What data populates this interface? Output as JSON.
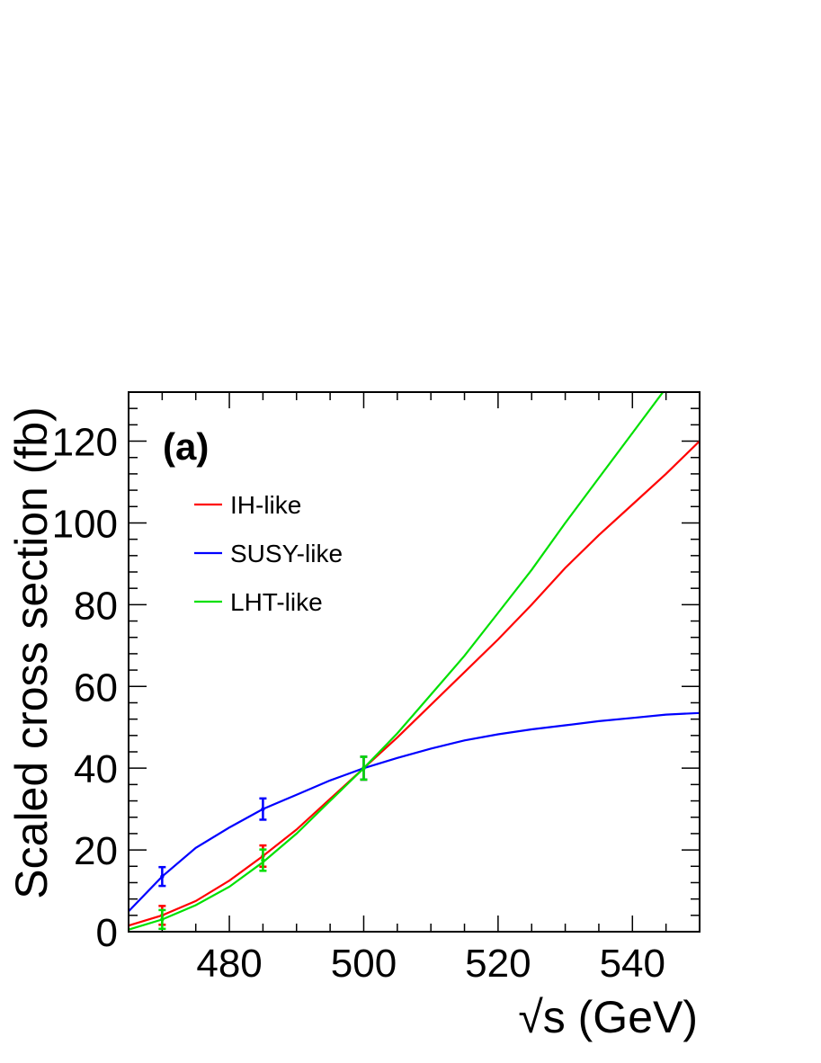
{
  "chart_data": {
    "type": "line",
    "panel_label": "(a)",
    "xlabel": "√s (GeV)",
    "ylabel": "Scaled cross section (fb)",
    "xlim": [
      465,
      550
    ],
    "ylim": [
      0,
      132
    ],
    "x_ticks": [
      480,
      500,
      520,
      540
    ],
    "y_ticks": [
      0,
      20,
      40,
      60,
      80,
      100,
      120
    ],
    "grid": false,
    "legend_position": "top-left",
    "series": [
      {
        "name": "IH-like",
        "color": "#ff0000",
        "x": [
          465,
          470,
          475,
          480,
          485,
          490,
          495,
          500,
          505,
          510,
          515,
          520,
          525,
          530,
          535,
          540,
          545,
          550
        ],
        "y": [
          1.5,
          4,
          7.5,
          12.5,
          18.5,
          25,
          32.5,
          40,
          47.5,
          55.5,
          63.5,
          71.5,
          80,
          89,
          97,
          104.5,
          112,
          120
        ],
        "points": [
          {
            "x": 470,
            "y": 4,
            "err": 2.3
          },
          {
            "x": 485,
            "y": 18.5,
            "err": 2.6
          },
          {
            "x": 500,
            "y": 40,
            "err": 2.8
          }
        ]
      },
      {
        "name": "SUSY-like",
        "color": "#0000ff",
        "x": [
          465,
          470,
          475,
          480,
          485,
          490,
          495,
          500,
          505,
          510,
          515,
          520,
          525,
          530,
          535,
          540,
          545,
          550
        ],
        "y": [
          5,
          13.5,
          20.5,
          25.5,
          30,
          33.5,
          37,
          40,
          42.5,
          44.8,
          46.8,
          48.3,
          49.5,
          50.5,
          51.5,
          52.3,
          53.1,
          53.5
        ],
        "points": [
          {
            "x": 470,
            "y": 13.5,
            "err": 2.3
          },
          {
            "x": 485,
            "y": 30,
            "err": 2.6
          },
          {
            "x": 500,
            "y": 40,
            "err": 2.8
          }
        ]
      },
      {
        "name": "LHT-like",
        "color": "#00e000",
        "x": [
          465,
          470,
          475,
          480,
          485,
          490,
          495,
          500,
          505,
          510,
          515,
          520,
          525,
          530,
          535,
          540,
          545
        ],
        "y": [
          0.5,
          3,
          6.5,
          11,
          17,
          24,
          32,
          40,
          48.5,
          58,
          67.5,
          78,
          88.5,
          100,
          111,
          122,
          133
        ],
        "points": [
          {
            "x": 470,
            "y": 3,
            "err": 2.3
          },
          {
            "x": 485,
            "y": 17.5,
            "err": 2.6
          },
          {
            "x": 500,
            "y": 40,
            "err": 2.8
          }
        ]
      }
    ]
  }
}
